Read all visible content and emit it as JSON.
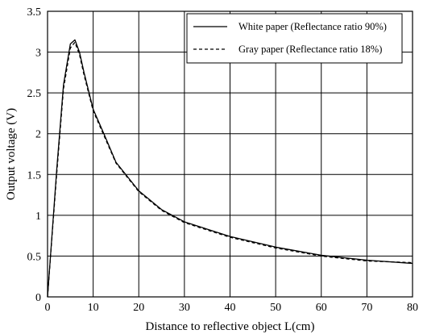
{
  "chart_data": {
    "type": "line",
    "xlabel": "Distance to reflective object L(cm)",
    "ylabel": "Output voltage (V)",
    "xlim": [
      0,
      80
    ],
    "ylim": [
      0,
      3.5
    ],
    "x_ticks": [
      "0",
      "10",
      "20",
      "30",
      "40",
      "50",
      "60",
      "70",
      "80"
    ],
    "y_ticks": [
      "0",
      "0.5",
      "1",
      "1.5",
      "2",
      "2.5",
      "3",
      "3.5"
    ],
    "grid": true,
    "legend_position": "top-right",
    "series": [
      {
        "name": "White paper (Reflectance ratio 90%)",
        "line_style": "solid",
        "color": "#000000",
        "x": [
          0,
          2,
          3.5,
          5,
          6,
          7,
          8,
          10,
          12.5,
          15,
          20,
          25,
          30,
          40,
          50,
          60,
          70,
          80
        ],
        "y": [
          0,
          1.55,
          2.6,
          3.1,
          3.15,
          3.0,
          2.75,
          2.3,
          1.98,
          1.65,
          1.3,
          1.07,
          0.92,
          0.74,
          0.61,
          0.51,
          0.45,
          0.41
        ]
      },
      {
        "name": "Gray paper (Reflectance ratio 18%)",
        "line_style": "dashed",
        "color": "#000000",
        "x": [
          0,
          2,
          3.5,
          5,
          6,
          7,
          8,
          10,
          12.5,
          15,
          20,
          25,
          30,
          40,
          50,
          60,
          70,
          80
        ],
        "y": [
          0,
          1.5,
          2.55,
          3.05,
          3.12,
          2.97,
          2.72,
          2.28,
          1.96,
          1.64,
          1.29,
          1.06,
          0.91,
          0.73,
          0.6,
          0.5,
          0.44,
          0.42
        ]
      }
    ]
  }
}
